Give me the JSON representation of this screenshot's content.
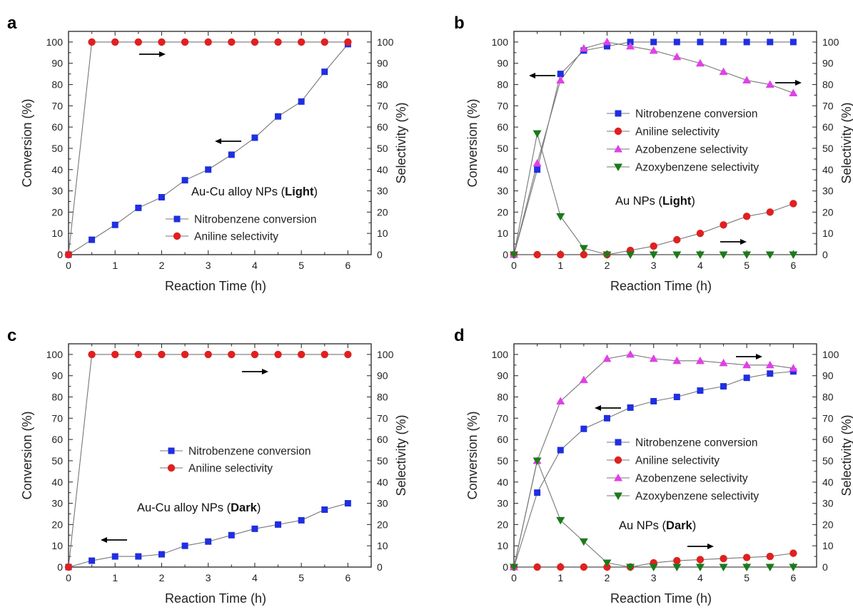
{
  "colors": {
    "conversion": "#1f2fe0",
    "aniline": "#e02020",
    "azobenzene": "#e040e8",
    "azoxybenzene": "#1a7a1a",
    "line": "#777777",
    "axis": "#333333",
    "arrow": "#000000"
  },
  "chart_data": [
    {
      "panel": "a",
      "type": "line",
      "xlabel": "Reaction Time (h)",
      "ylabel_left": "Conversion (%)",
      "ylabel_right": "Selectivity (%)",
      "xlim": [
        0,
        6.5
      ],
      "ylim": [
        0,
        105
      ],
      "xticks": [
        0,
        1,
        2,
        3,
        4,
        5,
        6
      ],
      "yticks": [
        0,
        10,
        20,
        30,
        40,
        50,
        60,
        70,
        80,
        90,
        100
      ],
      "annotation": {
        "prefix": "Au-Cu alloy NPs (",
        "bold": "Light",
        "suffix": ")"
      },
      "series": [
        {
          "name": "Nitrobenzene conversion",
          "marker": "square",
          "axis": "left",
          "x": [
            0,
            0.5,
            1,
            1.5,
            2,
            2.5,
            3,
            3.5,
            4,
            4.5,
            5,
            5.5,
            6
          ],
          "values": [
            0,
            7,
            14,
            22,
            27,
            35,
            40,
            47,
            55,
            65,
            72,
            86,
            99
          ]
        },
        {
          "name": "Aniline selectivity",
          "marker": "circle",
          "axis": "right",
          "x": [
            0,
            0.5,
            1,
            1.5,
            2,
            2.5,
            3,
            3.5,
            4,
            4.5,
            5,
            5.5,
            6
          ],
          "values": [
            0,
            100,
            100,
            100,
            100,
            100,
            100,
            100,
            100,
            100,
            100,
            100,
            100
          ]
        }
      ]
    },
    {
      "panel": "b",
      "type": "line",
      "xlabel": "Reaction Time (h)",
      "ylabel_left": "Conversion (%)",
      "ylabel_right": "Selectivity (%)",
      "xlim": [
        0,
        6.5
      ],
      "ylim": [
        0,
        105
      ],
      "xticks": [
        0,
        1,
        2,
        3,
        4,
        5,
        6
      ],
      "yticks": [
        0,
        10,
        20,
        30,
        40,
        50,
        60,
        70,
        80,
        90,
        100
      ],
      "annotation": {
        "prefix": "Au NPs (",
        "bold": "Light",
        "suffix": ")"
      },
      "series": [
        {
          "name": "Nitrobenzene conversion",
          "marker": "square",
          "axis": "left",
          "x": [
            0,
            0.5,
            1,
            1.5,
            2,
            2.5,
            3,
            3.5,
            4,
            4.5,
            5,
            5.5,
            6
          ],
          "values": [
            0,
            40,
            85,
            96,
            98,
            100,
            100,
            100,
            100,
            100,
            100,
            100,
            100
          ]
        },
        {
          "name": "Aniline selectivity",
          "marker": "circle",
          "axis": "right",
          "x": [
            0,
            0.5,
            1,
            1.5,
            2,
            2.5,
            3,
            3.5,
            4,
            4.5,
            5,
            5.5,
            6
          ],
          "values": [
            0,
            0,
            0,
            0,
            0,
            2,
            4,
            7,
            10,
            14,
            18,
            20,
            24
          ]
        },
        {
          "name": "Azobenzene selectivity",
          "marker": "triangle-up",
          "axis": "right",
          "x": [
            0,
            0.5,
            1,
            1.5,
            2,
            2.5,
            3,
            3.5,
            4,
            4.5,
            5,
            5.5,
            6
          ],
          "values": [
            0,
            43,
            82,
            97,
            100,
            98,
            96,
            93,
            90,
            86,
            82,
            80,
            76
          ]
        },
        {
          "name": "Azoxybenzene selectivity",
          "marker": "triangle-down",
          "axis": "right",
          "x": [
            0,
            0.5,
            1,
            1.5,
            2,
            2.5,
            3,
            3.5,
            4,
            4.5,
            5,
            5.5,
            6
          ],
          "values": [
            0,
            57,
            18,
            3,
            0,
            0,
            0,
            0,
            0,
            0,
            0,
            0,
            0
          ]
        }
      ]
    },
    {
      "panel": "c",
      "type": "line",
      "xlabel": "Reaction Time (h)",
      "ylabel_left": "Conversion (%)",
      "ylabel_right": "Selectivity (%)",
      "xlim": [
        0,
        6.5
      ],
      "ylim": [
        0,
        105
      ],
      "xticks": [
        0,
        1,
        2,
        3,
        4,
        5,
        6
      ],
      "yticks": [
        0,
        10,
        20,
        30,
        40,
        50,
        60,
        70,
        80,
        90,
        100
      ],
      "annotation": {
        "prefix": "Au-Cu alloy NPs (",
        "bold": "Dark",
        "suffix": ")"
      },
      "series": [
        {
          "name": "Nitrobenzene conversion",
          "marker": "square",
          "axis": "left",
          "x": [
            0,
            0.5,
            1,
            1.5,
            2,
            2.5,
            3,
            3.5,
            4,
            4.5,
            5,
            5.5,
            6
          ],
          "values": [
            0,
            3,
            5,
            5,
            6,
            10,
            12,
            15,
            18,
            20,
            22,
            27,
            30
          ]
        },
        {
          "name": "Aniline selectivity",
          "marker": "circle",
          "axis": "right",
          "x": [
            0,
            0.5,
            1,
            1.5,
            2,
            2.5,
            3,
            3.5,
            4,
            4.5,
            5,
            5.5,
            6
          ],
          "values": [
            0,
            100,
            100,
            100,
            100,
            100,
            100,
            100,
            100,
            100,
            100,
            100,
            100
          ]
        }
      ]
    },
    {
      "panel": "d",
      "type": "line",
      "xlabel": "Reaction Time (h)",
      "ylabel_left": "Conversion (%)",
      "ylabel_right": "Selectivity (%)",
      "xlim": [
        0,
        6.5
      ],
      "ylim": [
        0,
        105
      ],
      "xticks": [
        0,
        1,
        2,
        3,
        4,
        5,
        6
      ],
      "yticks": [
        0,
        10,
        20,
        30,
        40,
        50,
        60,
        70,
        80,
        90,
        100
      ],
      "annotation": {
        "prefix": "Au NPs (",
        "bold": "Dark",
        "suffix": ")"
      },
      "series": [
        {
          "name": "Nitrobenzene conversion",
          "marker": "square",
          "axis": "left",
          "x": [
            0,
            0.5,
            1,
            1.5,
            2,
            2.5,
            3,
            3.5,
            4,
            4.5,
            5,
            5.5,
            6
          ],
          "values": [
            0,
            35,
            55,
            65,
            70,
            75,
            78,
            80,
            83,
            85,
            89,
            91,
            92
          ]
        },
        {
          "name": "Aniline selectivity",
          "marker": "circle",
          "axis": "right",
          "x": [
            0,
            0.5,
            1,
            1.5,
            2,
            2.5,
            3,
            3.5,
            4,
            4.5,
            5,
            5.5,
            6
          ],
          "values": [
            0,
            0,
            0,
            0,
            0,
            0,
            2,
            3,
            3.5,
            4,
            4.5,
            5,
            6.5
          ]
        },
        {
          "name": "Azobenzene selectivity",
          "marker": "triangle-up",
          "axis": "right",
          "x": [
            0,
            0.5,
            1,
            1.5,
            2,
            2.5,
            3,
            3.5,
            4,
            4.5,
            5,
            5.5,
            6
          ],
          "values": [
            0,
            50,
            78,
            88,
            98,
            100,
            98,
            97,
            97,
            96,
            95,
            95,
            93.5
          ]
        },
        {
          "name": "Azoxybenzene selectivity",
          "marker": "triangle-down",
          "axis": "right",
          "x": [
            0,
            0.5,
            1,
            1.5,
            2,
            2.5,
            3,
            3.5,
            4,
            4.5,
            5,
            5.5,
            6
          ],
          "values": [
            0,
            50,
            22,
            12,
            2,
            0,
            0,
            0,
            0,
            0,
            0,
            0,
            0
          ]
        }
      ]
    }
  ]
}
